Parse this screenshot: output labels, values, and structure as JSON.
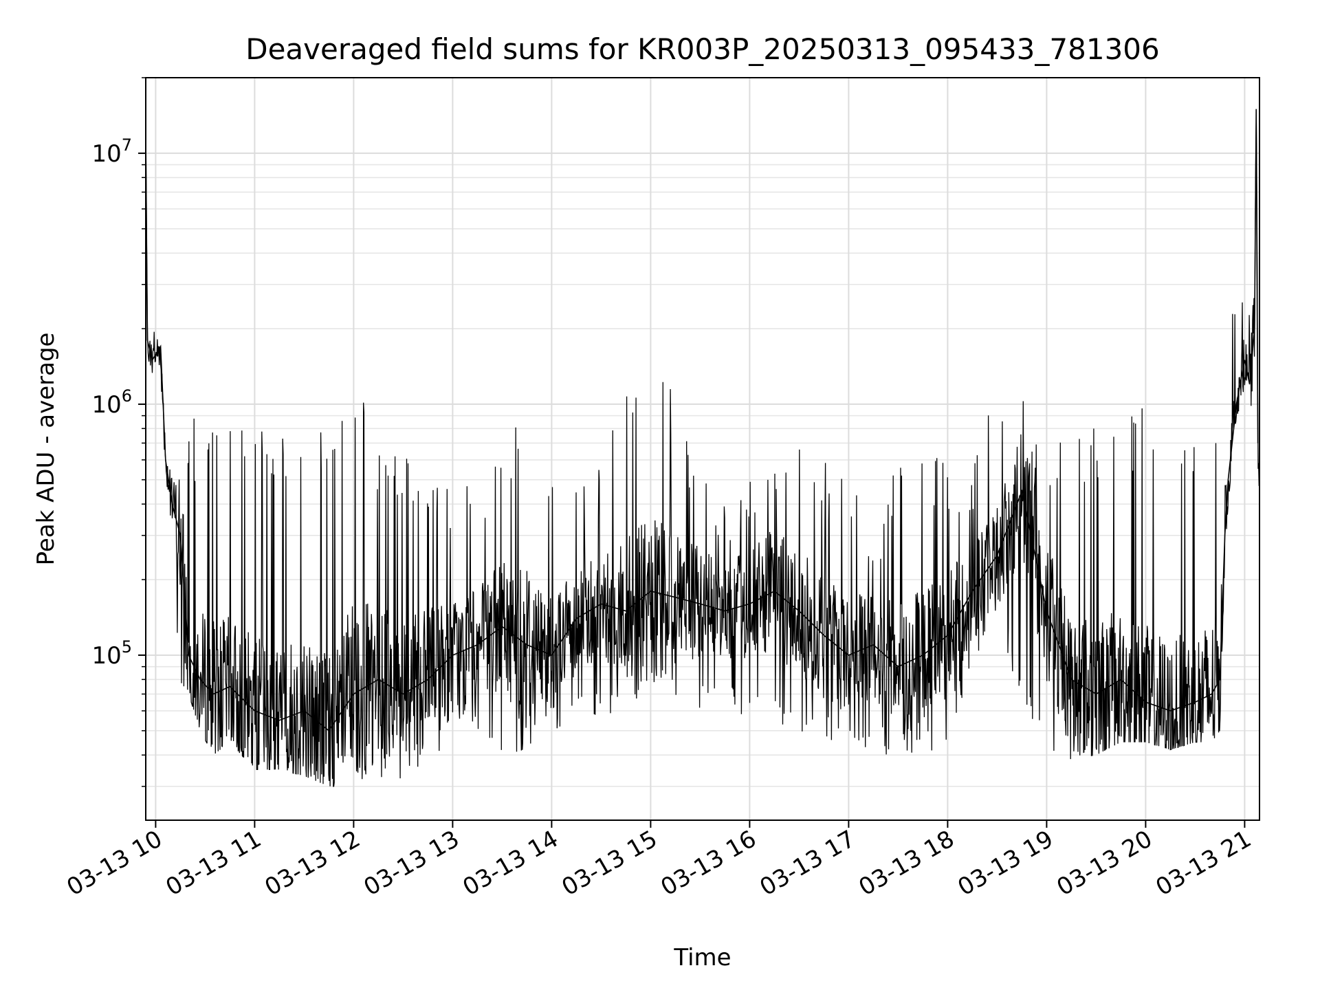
{
  "chart_data": {
    "type": "line",
    "title": "Deaveraged field sums for KR003P_20250313_095433_781306",
    "xlabel": "Time",
    "ylabel": "Peak ADU - average",
    "y_scale": "log",
    "ylim": [
      22000,
      20000000
    ],
    "xlim": [
      "2025-03-13 09:54",
      "2025-03-13 21:09"
    ],
    "grid": true,
    "line_color": "#000000",
    "x_ticks": [
      {
        "t": "2025-03-13 10:00",
        "label": "03-13 10"
      },
      {
        "t": "2025-03-13 11:00",
        "label": "03-13 11"
      },
      {
        "t": "2025-03-13 12:00",
        "label": "03-13 12"
      },
      {
        "t": "2025-03-13 13:00",
        "label": "03-13 13"
      },
      {
        "t": "2025-03-13 14:00",
        "label": "03-13 14"
      },
      {
        "t": "2025-03-13 15:00",
        "label": "03-13 15"
      },
      {
        "t": "2025-03-13 16:00",
        "label": "03-13 16"
      },
      {
        "t": "2025-03-13 17:00",
        "label": "03-13 17"
      },
      {
        "t": "2025-03-13 18:00",
        "label": "03-13 18"
      },
      {
        "t": "2025-03-13 19:00",
        "label": "03-13 19"
      },
      {
        "t": "2025-03-13 20:00",
        "label": "03-13 20"
      },
      {
        "t": "2025-03-13 21:00",
        "label": "03-13 21"
      }
    ],
    "y_ticks": [
      {
        "value": 100000,
        "base": "10",
        "exp": "5"
      },
      {
        "value": 1000000,
        "base": "10",
        "exp": "6"
      },
      {
        "value": 10000000,
        "base": "10",
        "exp": "7"
      }
    ],
    "series": [
      {
        "x": [
          "2025-03-13 09:54",
          "2025-03-13 09:55",
          "2025-03-13 09:58",
          "2025-03-13 10:03",
          "2025-03-13 10:06",
          "2025-03-13 10:10",
          "2025-03-13 10:15",
          "2025-03-13 10:20",
          "2025-03-13 10:27",
          "2025-03-13 10:35",
          "2025-03-13 10:45",
          "2025-03-13 11:00",
          "2025-03-13 11:15",
          "2025-03-13 11:30",
          "2025-03-13 11:45",
          "2025-03-13 12:00",
          "2025-03-13 12:15",
          "2025-03-13 12:30",
          "2025-03-13 12:45",
          "2025-03-13 13:00",
          "2025-03-13 13:15",
          "2025-03-13 13:30",
          "2025-03-13 13:45",
          "2025-03-13 14:00",
          "2025-03-13 14:15",
          "2025-03-13 14:30",
          "2025-03-13 14:45",
          "2025-03-13 15:00",
          "2025-03-13 15:15",
          "2025-03-13 15:30",
          "2025-03-13 15:45",
          "2025-03-13 16:00",
          "2025-03-13 16:15",
          "2025-03-13 16:30",
          "2025-03-13 16:45",
          "2025-03-13 17:00",
          "2025-03-13 17:15",
          "2025-03-13 17:30",
          "2025-03-13 17:45",
          "2025-03-13 18:00",
          "2025-03-13 18:15",
          "2025-03-13 18:30",
          "2025-03-13 18:45",
          "2025-03-13 19:00",
          "2025-03-13 19:15",
          "2025-03-13 19:30",
          "2025-03-13 19:45",
          "2025-03-13 20:00",
          "2025-03-13 20:15",
          "2025-03-13 20:30",
          "2025-03-13 20:40",
          "2025-03-13 20:45",
          "2025-03-13 20:48",
          "2025-03-13 20:50",
          "2025-03-13 20:55",
          "2025-03-13 21:00",
          "2025-03-13 21:03",
          "2025-03-13 21:06",
          "2025-03-13 21:07",
          "2025-03-13 21:08"
        ],
        "y": [
          12000000,
          1800000,
          1500000,
          1700000,
          600000,
          400000,
          300000,
          100000,
          80000,
          70000,
          75000,
          60000,
          55000,
          60000,
          50000,
          70000,
          80000,
          70000,
          80000,
          100000,
          110000,
          130000,
          110000,
          100000,
          140000,
          160000,
          150000,
          180000,
          170000,
          160000,
          150000,
          160000,
          180000,
          150000,
          120000,
          100000,
          110000,
          90000,
          100000,
          120000,
          180000,
          250000,
          450000,
          150000,
          80000,
          70000,
          80000,
          65000,
          60000,
          65000,
          70000,
          80000,
          300000,
          500000,
          1000000,
          1500000,
          1200000,
          2000000,
          15000000,
          700000
        ],
        "y_min": [
          12000000,
          1400000,
          1300000,
          1100000,
          350000,
          250000,
          60000,
          70000,
          50000,
          40000,
          45000,
          35000,
          35000,
          33000,
          30000,
          30000,
          33000,
          30000,
          35000,
          45000,
          50000,
          40000,
          40000,
          50000,
          55000,
          55000,
          60000,
          70000,
          65000,
          60000,
          60000,
          55000,
          50000,
          45000,
          45000,
          45000,
          40000,
          40000,
          40000,
          45000,
          90000,
          150000,
          60000,
          40000,
          38000,
          40000,
          45000,
          45000,
          42000,
          45000,
          45000,
          50000,
          250000,
          400000,
          900000,
          1000000,
          900000,
          500000,
          450000,
          450000
        ],
        "y_max": [
          12000000,
          2800000,
          2300000,
          2600000,
          700000,
          700000,
          950000,
          900000,
          850000,
          850000,
          800000,
          800000,
          800000,
          800000,
          1000000,
          1200000,
          800000,
          650000,
          600000,
          550000,
          500000,
          600000,
          1600000,
          500000,
          500000,
          600000,
          1600000,
          1300000,
          1250000,
          600000,
          400000,
          600000,
          650000,
          700000,
          600000,
          500000,
          350000,
          600000,
          650000,
          600000,
          650000,
          1350000,
          1100000,
          800000,
          700000,
          900000,
          800000,
          1100000,
          800000,
          900000,
          900000,
          1100000,
          600000,
          2500000,
          2300000,
          2800000,
          3000000,
          2600000,
          15000000,
          3000000
        ]
      }
    ]
  }
}
